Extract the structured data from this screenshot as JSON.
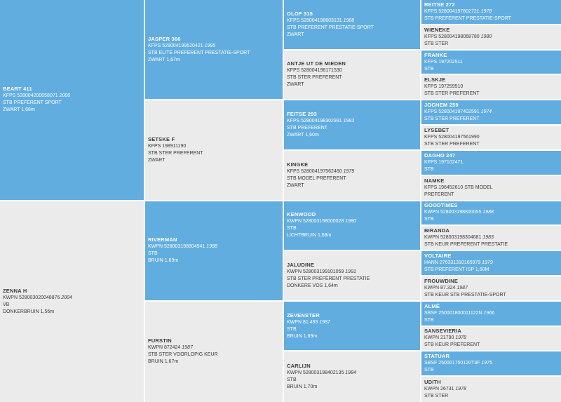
{
  "pedigree": {
    "g1": [
      {
        "name": "BEART 411",
        "reg": "KFPS 528004200058071",
        "year": "2000",
        "line2": "STB PREFERENT SPORT",
        "line3": "ZWART 1,68m",
        "color": "blue"
      },
      {
        "name": "ZENNA H",
        "reg": "KWPN 528003020048876",
        "year": "2004",
        "line2": "VB",
        "line3": "DONKERBRUIN 1,56m",
        "color": "grey"
      }
    ],
    "g2": [
      {
        "name": "JASPER 366",
        "reg": "KFPS 528004199520421",
        "year": "1995",
        "line2": "STB ELITE PREFERENT PRESTATIE-SPORT",
        "line3": "ZWART 1,67m",
        "color": "blue"
      },
      {
        "name": "SETSKE F",
        "reg": "KFPS 198911190",
        "year": "",
        "line2": "STB STER PREFERENT",
        "line3": "ZWART",
        "color": "grey"
      },
      {
        "name": "RIVERMAN",
        "reg": "KWPN 528003198804941",
        "year": "1988",
        "line2": "STB",
        "line3": "BRUIN 1,69m",
        "color": "blue"
      },
      {
        "name": "FURSTIN",
        "reg": "KWPN 872424",
        "year": "1987",
        "line2": "STB STER VOORLOPIG KEUR",
        "line3": "BRUIN 1,67m",
        "color": "grey"
      }
    ],
    "g3": [
      {
        "name": "OLOF 315",
        "reg": "KFPS 528004198603131",
        "year": "1988",
        "line2": "STB PREFERENT PRESTATIE-SPORT",
        "line3": "ZWART",
        "color": "blue"
      },
      {
        "name": "ANTJE UT DE MIEDEN",
        "reg": "KFPS 528004198171530",
        "year": "",
        "line2": "STB STER PREFERENT",
        "line3": "ZWART",
        "color": "grey"
      },
      {
        "name": "FEITSE 293",
        "reg": "KFPS 528004198302931",
        "year": "1983",
        "line2": "STB PREFERENT",
        "line3": "ZWART 1,60m",
        "color": "blue"
      },
      {
        "name": "KINGKE",
        "reg": "KFPS 528004197562460",
        "year": "1975",
        "line2": "STB MODEL PREFERENT",
        "line3": "ZWART",
        "color": "grey"
      },
      {
        "name": "KENWOOD",
        "reg": "KWPN 528003198000028",
        "year": "1980",
        "line2": "STB",
        "line3": "LICHTBRUIN 1,68m",
        "color": "blue"
      },
      {
        "name": "JALUDINE",
        "reg": "KWPN 528003199101059",
        "year": "1991",
        "line2": "STB STER PREFERENT PRESTATIE",
        "line3": "DONKERE VOS 1,64m",
        "color": "grey"
      },
      {
        "name": "ZEVENSTER",
        "reg": "KWPN 81.493",
        "year": "1987",
        "line2": "STB",
        "line3": "BRUIN 1,69m",
        "color": "blue"
      },
      {
        "name": "CARLIJN",
        "reg": "KWPN 528003198402135",
        "year": "1984",
        "line2": "STB",
        "line3": "BRUIN 1,70m",
        "color": "grey"
      }
    ],
    "g4": [
      {
        "name": "REITSE 272",
        "reg": "KFPS 528004197802721",
        "year": "1978",
        "line2": "STB PREFERENT PRESTATIE-SPORT",
        "line3": "",
        "color": "blue"
      },
      {
        "name": "WIENEKE",
        "reg": "KFPS 528004198068780",
        "year": "1980",
        "line2": "STB STER",
        "line3": "",
        "color": "grey"
      },
      {
        "name": "FRANKE",
        "reg": "KFPS 197202511",
        "year": "",
        "line2": "STB",
        "line3": "",
        "color": "blue"
      },
      {
        "name": "ELSKJE",
        "reg": "KFPS 197259510",
        "year": "",
        "line2": "STB STER PREFERENT",
        "line3": "",
        "color": "grey"
      },
      {
        "name": "JOCHEM 259",
        "reg": "KFPS 528004197402591",
        "year": "1974",
        "line2": "STB STER PREFERENT",
        "line3": "",
        "color": "blue"
      },
      {
        "name": "LYSEBET",
        "reg": "KFPS 528004197561990",
        "year": "",
        "line2": "STB STER PREFERENT",
        "line3": "",
        "color": "grey"
      },
      {
        "name": "DAGHO 247",
        "reg": "KFPS 197102471",
        "year": "",
        "line2": "STB",
        "line3": "",
        "color": "blue"
      },
      {
        "name": "NAMKE",
        "reg": "KFPS 196452610 STB MODEL",
        "year": "",
        "line2": "PREFERENT",
        "line3": "",
        "color": "grey"
      },
      {
        "name": "GOODTIMES",
        "reg": "KWPN 528003198800055",
        "year": "1988",
        "line2": "STB",
        "line3": "",
        "color": "blue"
      },
      {
        "name": "BIRANDA",
        "reg": "KWPN 528003198304681",
        "year": "1983",
        "line2": "STB KEUR PREFERENT PRESTATIE",
        "line3": "",
        "color": "grey"
      },
      {
        "name": "VOLTAIRE",
        "reg": "HANN 276331310165979",
        "year": "1979",
        "line2": "STB PREFERENT ISP 1,60M",
        "line3": "",
        "color": "blue"
      },
      {
        "name": "FROUWDINE",
        "reg": "KWPN 87.324",
        "year": "1987",
        "line2": "STB KEUR STB PRESTATIE-SPORT",
        "line3": "",
        "color": "grey"
      },
      {
        "name": "ALMÉ",
        "reg": "SBSF 250001800011122N",
        "year": "1966",
        "line2": "STB",
        "line3": "",
        "color": "blue"
      },
      {
        "name": "SANSEVIERIA",
        "reg": "KWPN 21790",
        "year": "1978",
        "line2": "STB KEUR PREFERENT",
        "line3": "",
        "color": "grey"
      },
      {
        "name": "STATUAR",
        "reg": "SBSF 250001750120T3F",
        "year": "1975",
        "line2": "STB",
        "line3": "",
        "color": "blue"
      },
      {
        "name": "UDITH",
        "reg": "KWPN 26731",
        "year": "1978",
        "line2": "STB STER",
        "line3": "",
        "color": "grey"
      }
    ]
  }
}
